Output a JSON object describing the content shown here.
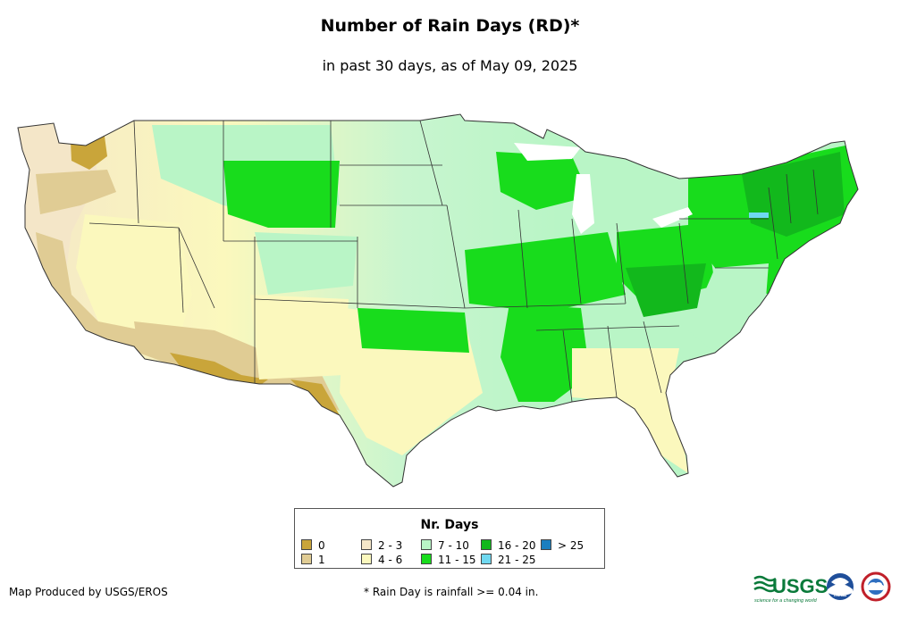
{
  "header": {
    "title": "Number of Rain Days (RD)*",
    "subtitle": "in past 30 days, as of May 09, 2025"
  },
  "legend": {
    "title": "Nr. Days",
    "items": [
      {
        "label": "0",
        "color": "#c9a53a"
      },
      {
        "label": "1",
        "color": "#e0cc94"
      },
      {
        "label": "2 - 3",
        "color": "#f4e6c8"
      },
      {
        "label": "4 - 6",
        "color": "#fbf8bd"
      },
      {
        "label": "7 - 10",
        "color": "#b9f5c6"
      },
      {
        "label": "11 - 15",
        "color": "#18dc1c"
      },
      {
        "label": "16 - 20",
        "color": "#12b81c"
      },
      {
        "label": "21 - 25",
        "color": "#6fd8f0"
      },
      {
        "label": "> 25",
        "color": "#1a7fc0"
      }
    ]
  },
  "footer": {
    "credit": "Map Produced by USGS/EROS",
    "note": "* Rain Day is rainfall >= 0.04 in."
  },
  "logos": {
    "usgs": "USGS",
    "usgs_tagline": "science for a changing world",
    "noaa": "noaa",
    "nws_icon": "nws-icon"
  }
}
